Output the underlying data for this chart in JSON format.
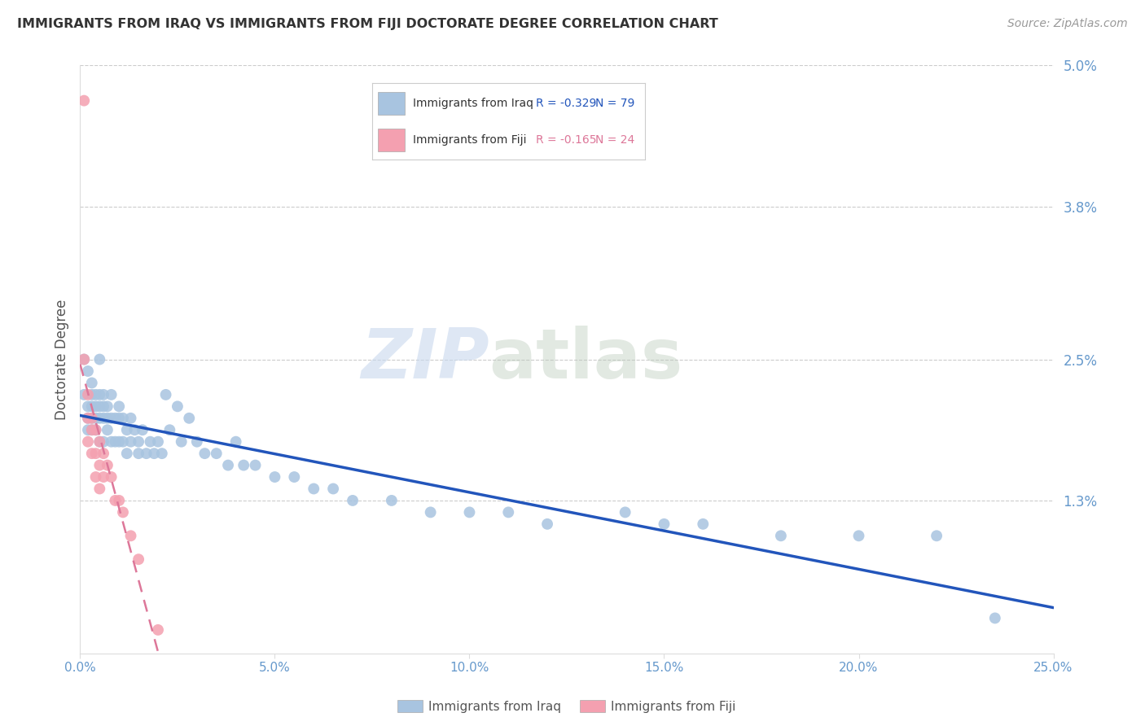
{
  "title": "IMMIGRANTS FROM IRAQ VS IMMIGRANTS FROM FIJI DOCTORATE DEGREE CORRELATION CHART",
  "source": "Source: ZipAtlas.com",
  "ylabel": "Doctorate Degree",
  "x_min": 0.0,
  "x_max": 0.25,
  "y_min": 0.0,
  "y_max": 0.05,
  "x_ticks": [
    0.0,
    0.05,
    0.1,
    0.15,
    0.2,
    0.25
  ],
  "x_tick_labels": [
    "0.0%",
    "5.0%",
    "10.0%",
    "15.0%",
    "20.0%",
    "25.0%"
  ],
  "y_ticks": [
    0.013,
    0.025,
    0.038,
    0.05
  ],
  "y_tick_labels": [
    "1.3%",
    "2.5%",
    "3.8%",
    "5.0%"
  ],
  "iraq_R": -0.329,
  "iraq_N": 79,
  "fiji_R": -0.165,
  "fiji_N": 24,
  "iraq_color": "#a8c4e0",
  "fiji_color": "#f4a0b0",
  "iraq_line_color": "#2255bb",
  "fiji_line_color": "#dd7799",
  "legend_iraq": "Immigrants from Iraq",
  "legend_fiji": "Immigrants from Fiji",
  "title_color": "#333333",
  "axis_label_color": "#555555",
  "tick_color": "#6699cc",
  "grid_color": "#cccccc",
  "watermark_zip": "ZIP",
  "watermark_atlas": "atlas",
  "iraq_x": [
    0.001,
    0.001,
    0.002,
    0.002,
    0.002,
    0.002,
    0.003,
    0.003,
    0.003,
    0.003,
    0.003,
    0.004,
    0.004,
    0.004,
    0.004,
    0.005,
    0.005,
    0.005,
    0.005,
    0.005,
    0.006,
    0.006,
    0.006,
    0.006,
    0.007,
    0.007,
    0.007,
    0.008,
    0.008,
    0.008,
    0.009,
    0.009,
    0.01,
    0.01,
    0.01,
    0.011,
    0.011,
    0.012,
    0.012,
    0.013,
    0.013,
    0.014,
    0.015,
    0.015,
    0.016,
    0.017,
    0.018,
    0.019,
    0.02,
    0.021,
    0.022,
    0.023,
    0.025,
    0.026,
    0.028,
    0.03,
    0.032,
    0.035,
    0.038,
    0.04,
    0.042,
    0.045,
    0.05,
    0.055,
    0.06,
    0.065,
    0.07,
    0.08,
    0.09,
    0.1,
    0.11,
    0.12,
    0.14,
    0.15,
    0.16,
    0.18,
    0.2,
    0.22,
    0.235
  ],
  "iraq_y": [
    0.025,
    0.022,
    0.024,
    0.021,
    0.02,
    0.019,
    0.023,
    0.022,
    0.021,
    0.02,
    0.019,
    0.022,
    0.021,
    0.02,
    0.019,
    0.025,
    0.022,
    0.021,
    0.02,
    0.018,
    0.022,
    0.021,
    0.02,
    0.018,
    0.021,
    0.02,
    0.019,
    0.022,
    0.02,
    0.018,
    0.02,
    0.018,
    0.021,
    0.02,
    0.018,
    0.02,
    0.018,
    0.019,
    0.017,
    0.02,
    0.018,
    0.019,
    0.018,
    0.017,
    0.019,
    0.017,
    0.018,
    0.017,
    0.018,
    0.017,
    0.022,
    0.019,
    0.021,
    0.018,
    0.02,
    0.018,
    0.017,
    0.017,
    0.016,
    0.018,
    0.016,
    0.016,
    0.015,
    0.015,
    0.014,
    0.014,
    0.013,
    0.013,
    0.012,
    0.012,
    0.012,
    0.011,
    0.012,
    0.011,
    0.011,
    0.01,
    0.01,
    0.01,
    0.003
  ],
  "fiji_x": [
    0.001,
    0.001,
    0.002,
    0.002,
    0.002,
    0.003,
    0.003,
    0.003,
    0.004,
    0.004,
    0.004,
    0.005,
    0.005,
    0.005,
    0.006,
    0.006,
    0.007,
    0.008,
    0.009,
    0.01,
    0.011,
    0.013,
    0.015,
    0.02
  ],
  "fiji_y": [
    0.047,
    0.025,
    0.022,
    0.02,
    0.018,
    0.02,
    0.019,
    0.017,
    0.019,
    0.017,
    0.015,
    0.018,
    0.016,
    0.014,
    0.017,
    0.015,
    0.016,
    0.015,
    0.013,
    0.013,
    0.012,
    0.01,
    0.008,
    0.002
  ]
}
